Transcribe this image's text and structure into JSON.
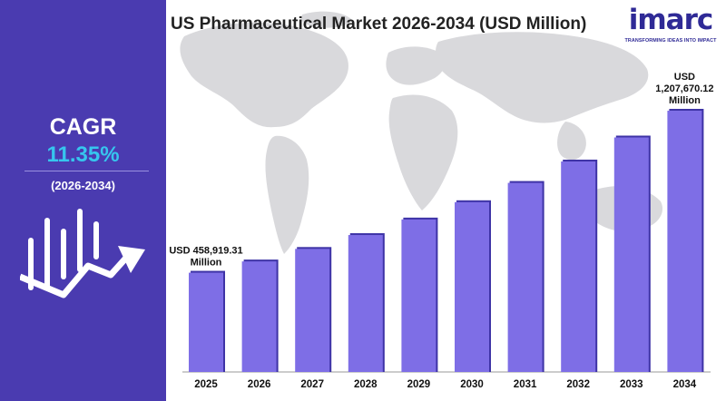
{
  "title": "US Pharmaceutical Market 2026-2034 (USD Million)",
  "cagr": {
    "label": "CAGR",
    "value": "11.35%",
    "period": "(2026-2034)"
  },
  "logo": {
    "word": "imarc",
    "tagline": "TRANSFORMING IDEAS INTO IMPACT"
  },
  "colors": {
    "panel": "#4a3bb0",
    "accent": "#36c6ee",
    "bar": "#7e6ee6",
    "bar_edge": "#3e33a6"
  },
  "chart_data": {
    "type": "bar",
    "title": "US Pharmaceutical Market 2026-2034 (USD Million)",
    "xlabel": "",
    "ylabel": "",
    "grid": false,
    "categories": [
      "2025",
      "2026",
      "2027",
      "2028",
      "2029",
      "2030",
      "2031",
      "2032",
      "2033",
      "2034"
    ],
    "values": [
      458919.31,
      511000,
      569000,
      633000,
      705000,
      785000,
      874000,
      973000,
      1084000,
      1207670.12
    ],
    "ylim": [
      0,
      1400000
    ],
    "annotations": [
      {
        "category": "2025",
        "lines": [
          "USD 458,919.31",
          "Million"
        ]
      },
      {
        "category": "2034",
        "lines": [
          "USD",
          "1,207,670.12",
          "Million"
        ]
      }
    ]
  }
}
